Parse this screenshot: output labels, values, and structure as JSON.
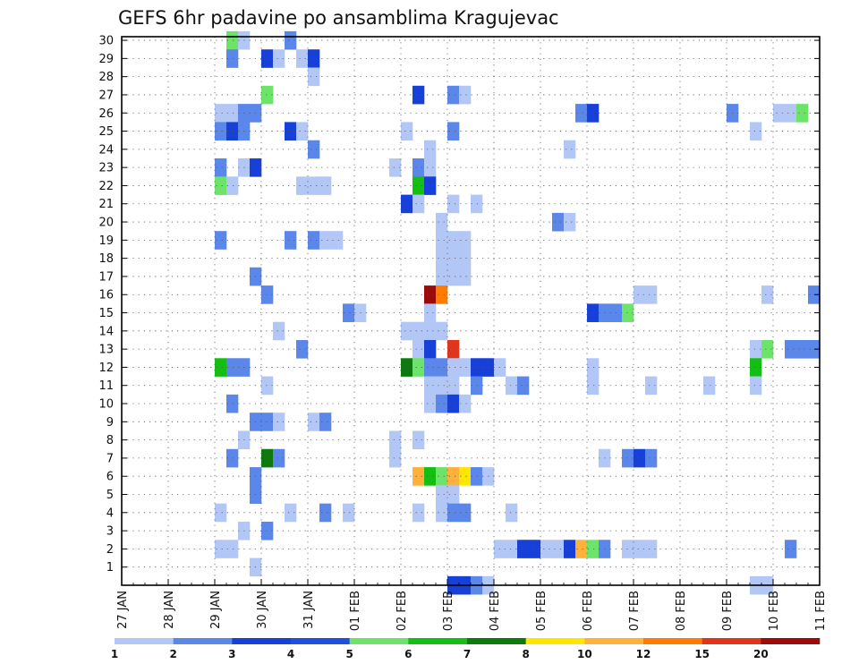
{
  "chart_data": {
    "type": "heatmap",
    "title": "GEFS 6hr padavine po ansamblima Kragujevac",
    "xlabel": "",
    "ylabel": "",
    "x_tick_labels": [
      "27 JAN",
      "28 JAN",
      "29 JAN",
      "30 JAN",
      "31 JAN",
      "01 FEB",
      "02 FEB",
      "03 FEB",
      "04 FEB",
      "05 FEB",
      "06 FEB",
      "07 FEB",
      "08 FEB",
      "09 FEB",
      "10 FEB",
      "11 FEB"
    ],
    "y_tick_labels": [
      "1",
      "2",
      "3",
      "4",
      "5",
      "6",
      "7",
      "8",
      "9",
      "10",
      "11",
      "12",
      "13",
      "14",
      "15",
      "16",
      "17",
      "18",
      "19",
      "20",
      "21",
      "22",
      "23",
      "24",
      "25",
      "26",
      "27",
      "28",
      "29",
      "30"
    ],
    "y_range": [
      0,
      30
    ],
    "x_step_hours": 6,
    "grid": true,
    "legend_position": "bottom",
    "legend_levels": [
      "1",
      "2",
      "3",
      "4",
      "5",
      "6",
      "7",
      "8",
      "10",
      "12",
      "15",
      "20"
    ],
    "colors": [
      "#b3c7f7",
      "#5b86ea",
      "#1640d8",
      "#1f4fdf",
      "#6ee36a",
      "#13bf13",
      "#0c7a0c",
      "#ffe600",
      "#ffb13b",
      "#ff7c00",
      "#e2341a",
      "#9b0b0b"
    ],
    "cells": [
      [
        30,
        9,
        4
      ],
      [
        30,
        10,
        0
      ],
      [
        30,
        14,
        1
      ],
      [
        29,
        9,
        1
      ],
      [
        29,
        12,
        2
      ],
      [
        29,
        13,
        0
      ],
      [
        29,
        15,
        0
      ],
      [
        29,
        16,
        2
      ],
      [
        28,
        16,
        0
      ],
      [
        27,
        12,
        4
      ],
      [
        27,
        25,
        2
      ],
      [
        27,
        28,
        1
      ],
      [
        27,
        29,
        0
      ],
      [
        26,
        8,
        0
      ],
      [
        26,
        9,
        0
      ],
      [
        26,
        10,
        1
      ],
      [
        26,
        11,
        1
      ],
      [
        26,
        39,
        1
      ],
      [
        26,
        40,
        2
      ],
      [
        26,
        52,
        1
      ],
      [
        26,
        56,
        0
      ],
      [
        26,
        57,
        0
      ],
      [
        26,
        58,
        4
      ],
      [
        25,
        8,
        1
      ],
      [
        25,
        9,
        2
      ],
      [
        25,
        10,
        1
      ],
      [
        25,
        14,
        2
      ],
      [
        25,
        15,
        0
      ],
      [
        25,
        24,
        0
      ],
      [
        25,
        28,
        1
      ],
      [
        25,
        54,
        0
      ],
      [
        24,
        16,
        1
      ],
      [
        24,
        26,
        0
      ],
      [
        24,
        38,
        0
      ],
      [
        23,
        8,
        1
      ],
      [
        23,
        10,
        0
      ],
      [
        23,
        11,
        2
      ],
      [
        23,
        23,
        0
      ],
      [
        23,
        25,
        1
      ],
      [
        23,
        26,
        0
      ],
      [
        22,
        8,
        4
      ],
      [
        22,
        9,
        0
      ],
      [
        22,
        15,
        0
      ],
      [
        22,
        16,
        0
      ],
      [
        22,
        17,
        0
      ],
      [
        22,
        25,
        5
      ],
      [
        22,
        26,
        2
      ],
      [
        21,
        24,
        2
      ],
      [
        21,
        25,
        0
      ],
      [
        21,
        28,
        0
      ],
      [
        21,
        30,
        0
      ],
      [
        20,
        27,
        0
      ],
      [
        20,
        37,
        1
      ],
      [
        20,
        38,
        0
      ],
      [
        19,
        8,
        1
      ],
      [
        19,
        14,
        1
      ],
      [
        19,
        16,
        1
      ],
      [
        19,
        17,
        0
      ],
      [
        19,
        18,
        0
      ],
      [
        19,
        27,
        0
      ],
      [
        19,
        28,
        0
      ],
      [
        19,
        29,
        0
      ],
      [
        18,
        27,
        0
      ],
      [
        18,
        28,
        0
      ],
      [
        18,
        29,
        0
      ],
      [
        17,
        11,
        1
      ],
      [
        17,
        27,
        0
      ],
      [
        17,
        28,
        0
      ],
      [
        17,
        29,
        0
      ],
      [
        16,
        12,
        1
      ],
      [
        16,
        26,
        11
      ],
      [
        16,
        27,
        9
      ],
      [
        16,
        44,
        0
      ],
      [
        16,
        45,
        0
      ],
      [
        16,
        55,
        0
      ],
      [
        16,
        59,
        1
      ],
      [
        15,
        19,
        1
      ],
      [
        15,
        20,
        0
      ],
      [
        15,
        26,
        0
      ],
      [
        15,
        40,
        2
      ],
      [
        15,
        41,
        1
      ],
      [
        15,
        42,
        1
      ],
      [
        15,
        43,
        4
      ],
      [
        14,
        13,
        0
      ],
      [
        14,
        24,
        0
      ],
      [
        14,
        25,
        0
      ],
      [
        14,
        26,
        0
      ],
      [
        14,
        27,
        0
      ],
      [
        13,
        15,
        1
      ],
      [
        13,
        25,
        0
      ],
      [
        13,
        26,
        2
      ],
      [
        13,
        28,
        10
      ],
      [
        13,
        54,
        0
      ],
      [
        13,
        55,
        4
      ],
      [
        13,
        57,
        1
      ],
      [
        13,
        58,
        1
      ],
      [
        13,
        59,
        1
      ],
      [
        12,
        8,
        5
      ],
      [
        12,
        9,
        1
      ],
      [
        12,
        10,
        1
      ],
      [
        12,
        24,
        6
      ],
      [
        12,
        25,
        4
      ],
      [
        12,
        26,
        1
      ],
      [
        12,
        27,
        1
      ],
      [
        12,
        28,
        0
      ],
      [
        12,
        29,
        0
      ],
      [
        12,
        30,
        2
      ],
      [
        12,
        31,
        2
      ],
      [
        12,
        32,
        0
      ],
      [
        12,
        40,
        0
      ],
      [
        12,
        54,
        5
      ],
      [
        11,
        12,
        0
      ],
      [
        11,
        26,
        0
      ],
      [
        11,
        27,
        0
      ],
      [
        11,
        28,
        0
      ],
      [
        11,
        30,
        1
      ],
      [
        11,
        33,
        0
      ],
      [
        11,
        34,
        1
      ],
      [
        11,
        40,
        0
      ],
      [
        11,
        45,
        0
      ],
      [
        11,
        50,
        0
      ],
      [
        11,
        54,
        0
      ],
      [
        10,
        9,
        1
      ],
      [
        10,
        26,
        0
      ],
      [
        10,
        27,
        1
      ],
      [
        10,
        28,
        2
      ],
      [
        10,
        29,
        0
      ],
      [
        9,
        11,
        1
      ],
      [
        9,
        12,
        1
      ],
      [
        9,
        13,
        0
      ],
      [
        9,
        16,
        0
      ],
      [
        9,
        17,
        1
      ],
      [
        8,
        10,
        0
      ],
      [
        8,
        23,
        0
      ],
      [
        8,
        25,
        0
      ],
      [
        7,
        9,
        1
      ],
      [
        7,
        12,
        6
      ],
      [
        7,
        13,
        1
      ],
      [
        7,
        23,
        0
      ],
      [
        7,
        41,
        0
      ],
      [
        7,
        43,
        1
      ],
      [
        7,
        44,
        2
      ],
      [
        7,
        45,
        1
      ],
      [
        6,
        11,
        1
      ],
      [
        6,
        25,
        8
      ],
      [
        6,
        26,
        5
      ],
      [
        6,
        27,
        4
      ],
      [
        6,
        28,
        8
      ],
      [
        6,
        29,
        7
      ],
      [
        6,
        30,
        1
      ],
      [
        6,
        31,
        0
      ],
      [
        5,
        11,
        1
      ],
      [
        5,
        27,
        0
      ],
      [
        5,
        28,
        0
      ],
      [
        4,
        8,
        0
      ],
      [
        4,
        14,
        0
      ],
      [
        4,
        17,
        1
      ],
      [
        4,
        19,
        0
      ],
      [
        4,
        25,
        0
      ],
      [
        4,
        27,
        0
      ],
      [
        4,
        28,
        1
      ],
      [
        4,
        29,
        1
      ],
      [
        4,
        33,
        0
      ],
      [
        3,
        10,
        0
      ],
      [
        3,
        12,
        1
      ],
      [
        2,
        8,
        0
      ],
      [
        2,
        9,
        0
      ],
      [
        2,
        32,
        0
      ],
      [
        2,
        33,
        0
      ],
      [
        2,
        34,
        2
      ],
      [
        2,
        35,
        2
      ],
      [
        2,
        36,
        0
      ],
      [
        2,
        37,
        0
      ],
      [
        2,
        38,
        2
      ],
      [
        2,
        39,
        8
      ],
      [
        2,
        40,
        4
      ],
      [
        2,
        41,
        1
      ],
      [
        2,
        43,
        0
      ],
      [
        2,
        44,
        0
      ],
      [
        2,
        45,
        0
      ],
      [
        2,
        57,
        1
      ],
      [
        1,
        11,
        0
      ],
      [
        0,
        28,
        2
      ],
      [
        0,
        29,
        2
      ],
      [
        0,
        30,
        1
      ],
      [
        0,
        31,
        0
      ],
      [
        0,
        54,
        0
      ],
      [
        0,
        55,
        0
      ]
    ]
  }
}
